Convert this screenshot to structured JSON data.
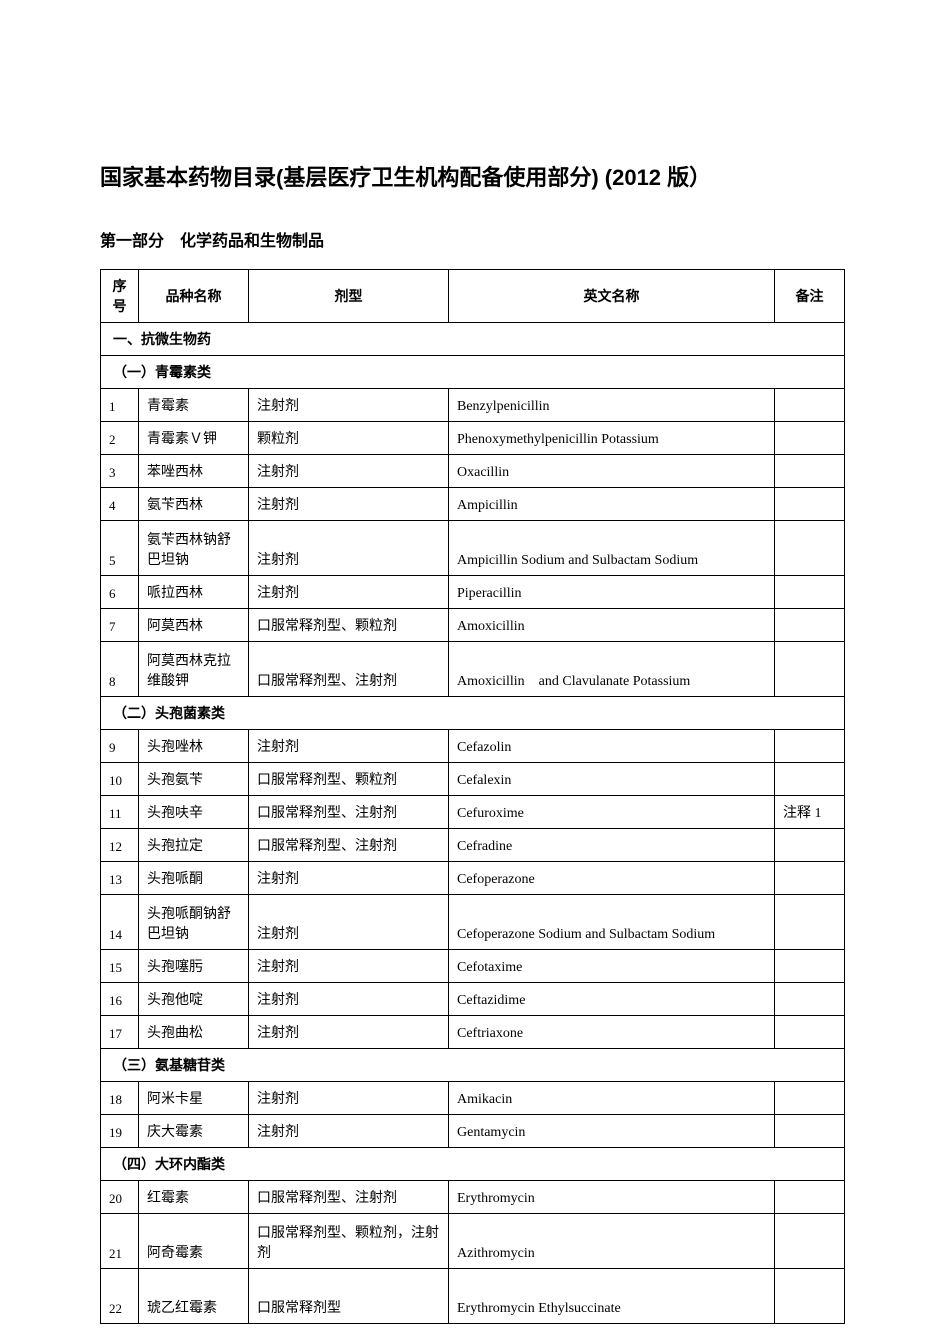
{
  "title": "国家基本药物目录(基层医疗卫生机构配备使用部分) (2012 版）",
  "subtitle": "第一部分　化学药品和生物制品",
  "headers": {
    "seq": "序号",
    "name": "品种名称",
    "form": "剂型",
    "english": "英文名称",
    "note": "备注"
  },
  "section1": "一、抗微生物药",
  "sub1": "（一）青霉素类",
  "r1": {
    "seq": "1",
    "name": "青霉素",
    "form": "注射剂",
    "en": "Benzylpenicillin",
    "note": ""
  },
  "r2": {
    "seq": "2",
    "name": "青霉素Ｖ钾",
    "form": "颗粒剂",
    "en": "Phenoxymethylpenicillin Potassium",
    "note": ""
  },
  "r3": {
    "seq": "3",
    "name": "苯唑西林",
    "form": "注射剂",
    "en": "Oxacillin",
    "note": ""
  },
  "r4": {
    "seq": "4",
    "name": "氨苄西林",
    "form": "注射剂",
    "en": "Ampicillin",
    "note": ""
  },
  "r5": {
    "seq": "5",
    "name": "氨苄西林钠舒巴坦钠",
    "form": "注射剂",
    "en": "Ampicillin Sodium and Sulbactam Sodium",
    "note": ""
  },
  "r6": {
    "seq": "6",
    "name": "哌拉西林",
    "form": "注射剂",
    "en": "Piperacillin",
    "note": ""
  },
  "r7": {
    "seq": "7",
    "name": "阿莫西林",
    "form": "口服常释剂型、颗粒剂",
    "en": "Amoxicillin",
    "note": ""
  },
  "r8": {
    "seq": "8",
    "name": "阿莫西林克拉维酸钾",
    "form": "口服常释剂型、注射剂",
    "en": "Amoxicillin　and Clavulanate Potassium",
    "note": ""
  },
  "sub2": "（二）头孢菌素类",
  "r9": {
    "seq": "9",
    "name": "头孢唑林",
    "form": "注射剂",
    "en": "Cefazolin",
    "note": ""
  },
  "r10": {
    "seq": "10",
    "name": "头孢氨苄",
    "form": "口服常释剂型、颗粒剂",
    "en": "Cefalexin",
    "note": ""
  },
  "r11": {
    "seq": "11",
    "name": "头孢呋辛",
    "form": "口服常释剂型、注射剂",
    "en": "Cefuroxime",
    "note": "注释 1"
  },
  "r12": {
    "seq": "12",
    "name": "头孢拉定",
    "form": "口服常释剂型、注射剂",
    "en": "Cefradine",
    "note": ""
  },
  "r13": {
    "seq": "13",
    "name": "头孢哌酮",
    "form": "注射剂",
    "en": "Cefoperazone",
    "note": ""
  },
  "r14": {
    "seq": "14",
    "name": "头孢哌酮钠舒巴坦钠",
    "form": "注射剂",
    "en": "Cefoperazone Sodium and Sulbactam Sodium",
    "note": ""
  },
  "r15": {
    "seq": "15",
    "name": "头孢噻肟",
    "form": "注射剂",
    "en": "Cefotaxime",
    "note": ""
  },
  "r16": {
    "seq": "16",
    "name": "头孢他啶",
    "form": "注射剂",
    "en": "Ceftazidime",
    "note": ""
  },
  "r17": {
    "seq": "17",
    "name": "头孢曲松",
    "form": "注射剂",
    "en": "Ceftriaxone",
    "note": ""
  },
  "sub3": "（三）氨基糖苷类",
  "r18": {
    "seq": "18",
    "name": "阿米卡星",
    "form": "注射剂",
    "en": "Amikacin",
    "note": ""
  },
  "r19": {
    "seq": "19",
    "name": "庆大霉素",
    "form": "注射剂",
    "en": "Gentamycin",
    "note": ""
  },
  "sub4": "（四）大环内酯类",
  "r20": {
    "seq": "20",
    "name": "红霉素",
    "form": "口服常释剂型、注射剂",
    "en": "Erythromycin",
    "note": ""
  },
  "r21": {
    "seq": "21",
    "name": "阿奇霉素",
    "form": "口服常释剂型、颗粒剂，注射剂",
    "en": "Azithromycin",
    "note": ""
  },
  "r22": {
    "seq": "22",
    "name": "琥乙红霉素",
    "form": "口服常释剂型",
    "en": "Erythromycin Ethylsuccinate",
    "note": ""
  }
}
